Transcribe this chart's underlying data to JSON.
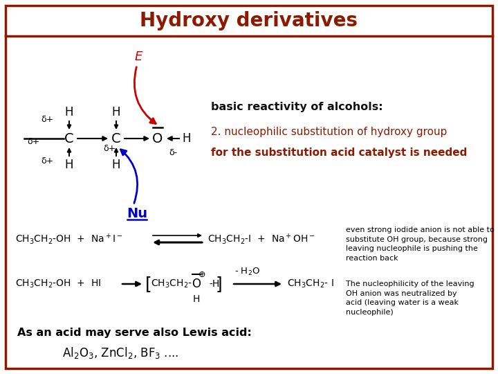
{
  "title": "Hydroxy derivatives",
  "title_color": "#8B1A00",
  "bg_color": "#FFFFFF",
  "border_color": "#8B1A00",
  "subtitle1": "basic reactivity of alcohols:",
  "subtitle2": "2. nucleophilic substitution of hydroxy group",
  "subtitle3": "for the substitution acid catalyst is needed",
  "sub1_color": "#111111",
  "sub23_color": "#8B1A00",
  "note1": "even strong iodide anion is not able to\nsubstitute OH group, because strong\nleaving nucleophile is pushing the\nreaction back",
  "note2": "The nucleophilicity of the leaving\nOH anion was neutralized by\nacid (leaving water is a weak\nnucleophile)",
  "lewis_label": "As an acid may serve also Lewis acid:",
  "lewis_formula": "Al₂O₃, ZnCl₂, BF₃ ….",
  "E_color": "#CC0000",
  "Nu_color": "#0000CC",
  "black": "#000000"
}
